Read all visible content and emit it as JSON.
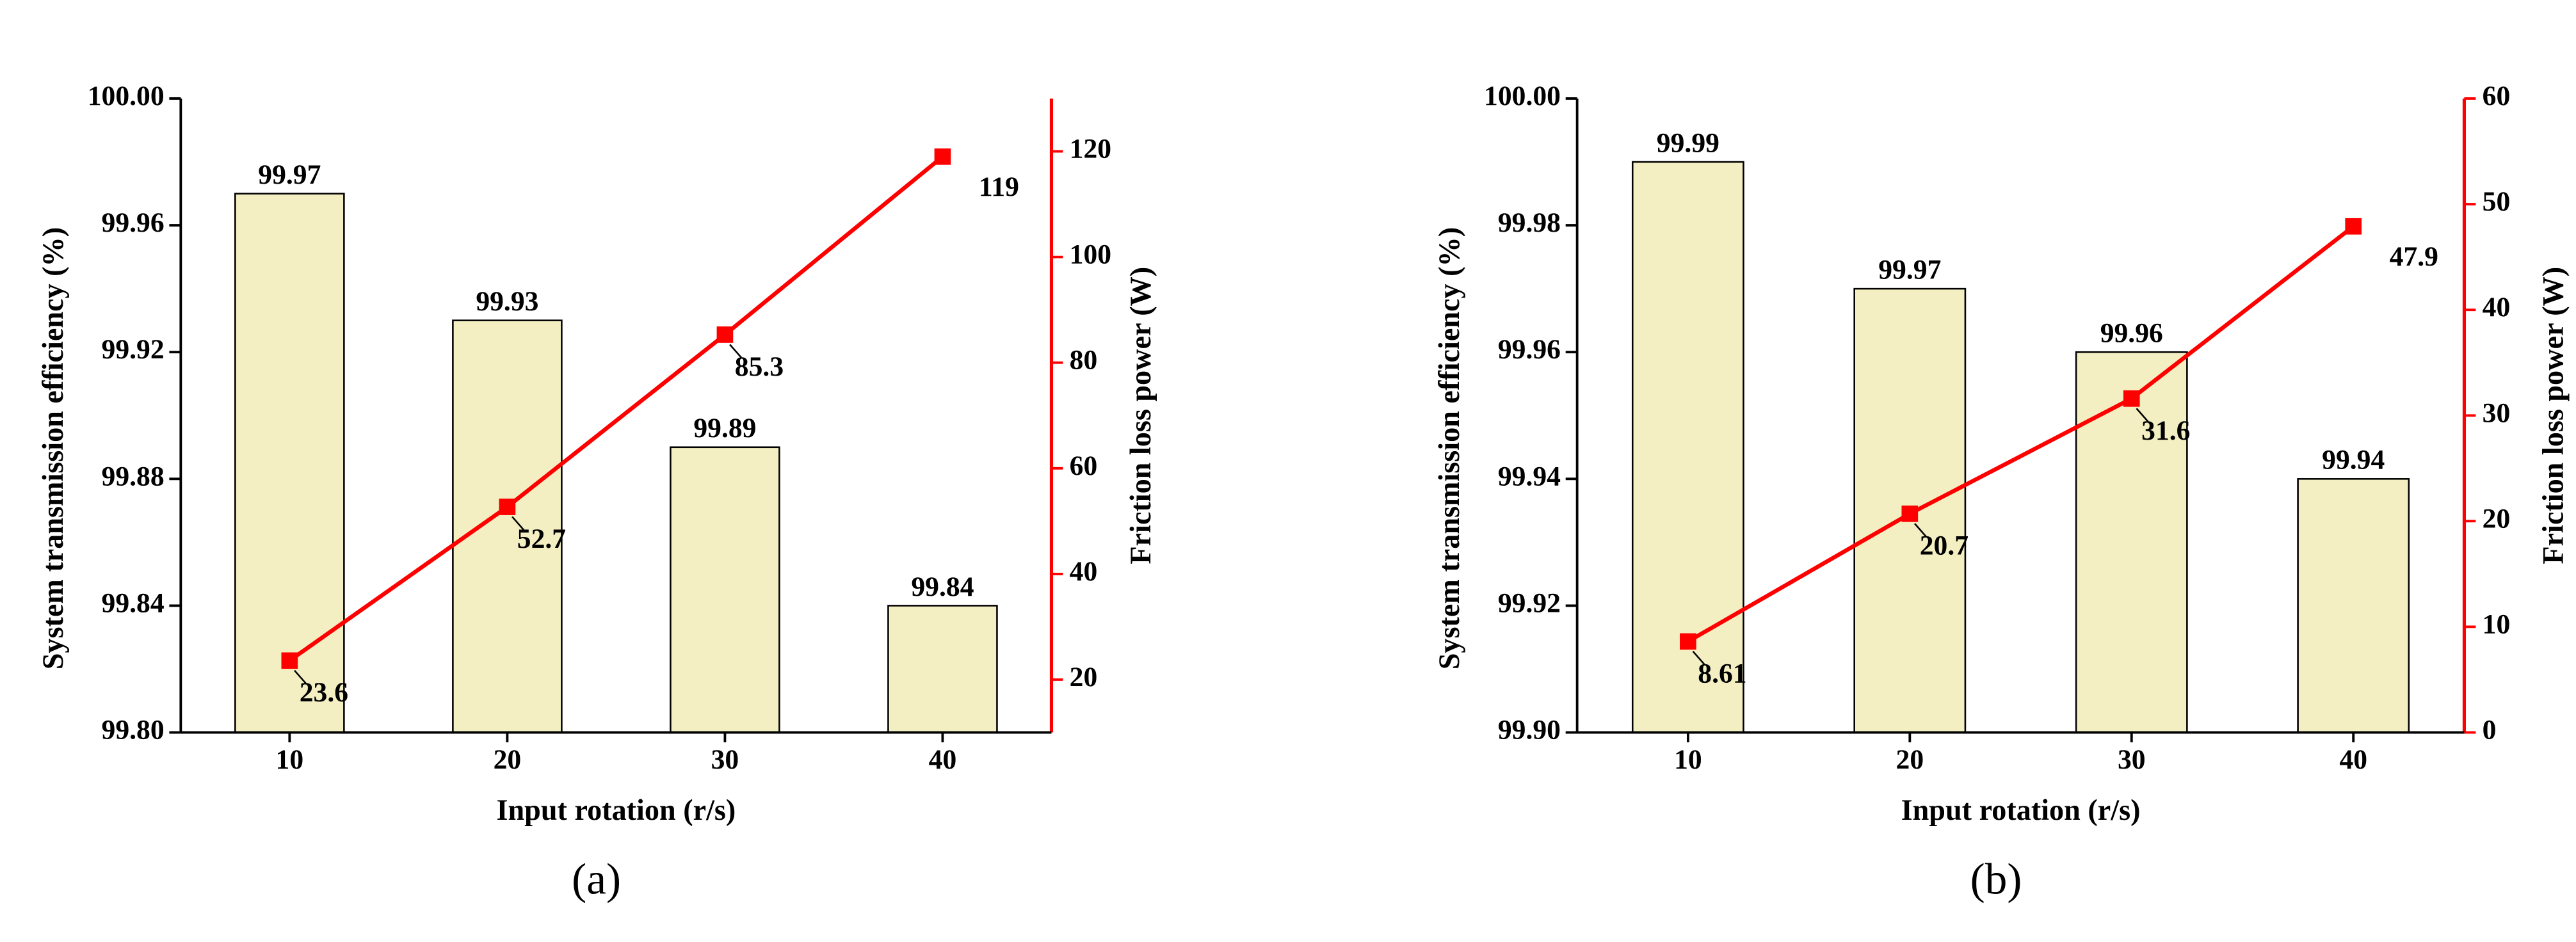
{
  "chart_data": [
    {
      "type": "bar",
      "caption": "(a)",
      "x_label": "Input rotation (r/s)",
      "y_label": "System transmission efficiency (%)",
      "y2_label": "Friction loss power (W)",
      "categories": [
        "10",
        "20",
        "30",
        "40"
      ],
      "ylim": [
        99.8,
        100.0
      ],
      "yticks": [
        {
          "value": 99.8,
          "label": "99.80"
        },
        99.84,
        99.88,
        99.92,
        99.96,
        {
          "value": 100.0,
          "label": "100.00"
        }
      ],
      "y2lim": [
        10,
        130
      ],
      "y2ticks": [
        20,
        40,
        60,
        80,
        100,
        120
      ],
      "series": [
        {
          "type": "bar",
          "color": "#f3efc2",
          "values": [
            99.97,
            99.93,
            99.89,
            99.84
          ]
        },
        {
          "type": "line",
          "axis": "y2",
          "color": "#ff0000",
          "values": [
            23.6,
            52.7,
            85.3,
            119
          ]
        }
      ]
    },
    {
      "type": "bar",
      "caption": "(b)",
      "x_label": "Input rotation (r/s)",
      "y_label": "System transmission efficiency (%)",
      "y2_label": "Friction loss power (W)",
      "categories": [
        "10",
        "20",
        "30",
        "40"
      ],
      "ylim": [
        99.9,
        100.0
      ],
      "yticks": [
        {
          "value": 99.9,
          "label": "99.90"
        },
        99.92,
        99.94,
        99.96,
        99.98,
        {
          "value": 100.0,
          "label": "100.00"
        }
      ],
      "y2lim": [
        0,
        60
      ],
      "y2ticks": [
        0,
        10,
        20,
        30,
        40,
        50,
        60
      ],
      "series": [
        {
          "type": "bar",
          "color": "#f3efc2",
          "values": [
            99.99,
            99.97,
            99.96,
            99.94
          ]
        },
        {
          "type": "line",
          "axis": "y2",
          "color": "#ff0000",
          "values": [
            8.61,
            20.7,
            31.6,
            47.9
          ]
        }
      ]
    }
  ]
}
